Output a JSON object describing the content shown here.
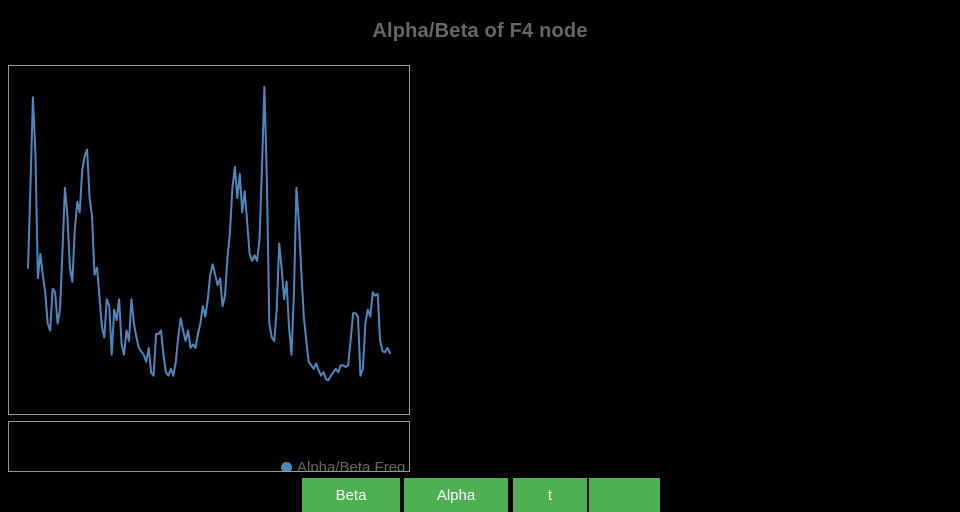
{
  "page": {
    "background_color": "#000000"
  },
  "title": {
    "text": "Alpha/Beta of F4 node",
    "color": "#666666"
  },
  "chart": {
    "border_color": "#979797",
    "background_color": "#000000",
    "line_color": "#4b87c0"
  },
  "legend": {
    "marker_icon": "circle-icon",
    "marker_color": "#4b87c0",
    "label": "Alpha/Beta Freq",
    "text_color": "#666666"
  },
  "buttons": [
    {
      "label": "Beta",
      "color": "#4caf50"
    },
    {
      "label": "Alpha",
      "color": "#4caf50"
    },
    {
      "label": "t",
      "color": "#4caf50"
    },
    {
      "label": "",
      "color": "#4caf50"
    }
  ],
  "chart_data": {
    "type": "line",
    "title": "Alpha/Beta of F4 node",
    "xlabel": "",
    "ylabel": "",
    "x_ticks_visible": false,
    "y_ticks_visible": false,
    "grid": false,
    "ylim": [
      0,
      100
    ],
    "legend_position": "bottom-right-below-plot",
    "series": [
      {
        "name": "Alpha/Beta Freq",
        "color": "#4b87c0",
        "values": [
          42,
          66,
          91,
          75,
          39,
          46,
          40,
          35,
          26,
          24,
          36,
          35,
          26,
          30,
          47,
          65,
          57,
          42,
          38,
          53,
          61,
          58,
          70,
          74,
          76,
          62,
          57,
          40,
          42,
          34,
          25,
          22,
          33,
          31,
          17,
          30,
          27,
          33,
          20,
          17,
          24,
          21,
          33,
          26,
          22,
          19,
          18,
          17,
          15,
          19,
          12,
          11,
          23,
          23,
          24,
          17,
          12,
          11,
          13,
          11,
          15,
          22,
          27.5,
          24,
          21,
          24,
          19,
          20,
          19,
          23,
          26,
          31,
          28,
          33,
          40,
          43,
          40,
          37,
          39,
          31,
          34,
          45,
          52,
          65,
          71,
          62,
          69,
          58,
          64,
          55,
          46,
          44,
          45.6,
          44,
          50,
          70,
          94,
          67,
          26,
          22,
          21,
          30,
          49,
          42,
          33,
          38,
          25,
          17,
          35,
          65,
          55,
          41,
          28,
          21,
          15,
          14,
          13,
          14.5,
          12.6,
          11,
          12,
          10,
          9.7,
          11,
          12,
          13,
          12,
          14,
          14,
          13.5,
          14,
          21,
          29,
          28.9,
          28,
          11,
          13,
          26,
          30,
          28,
          35,
          34,
          34.5,
          21,
          18,
          17.8,
          19,
          17.5
        ]
      }
    ]
  }
}
